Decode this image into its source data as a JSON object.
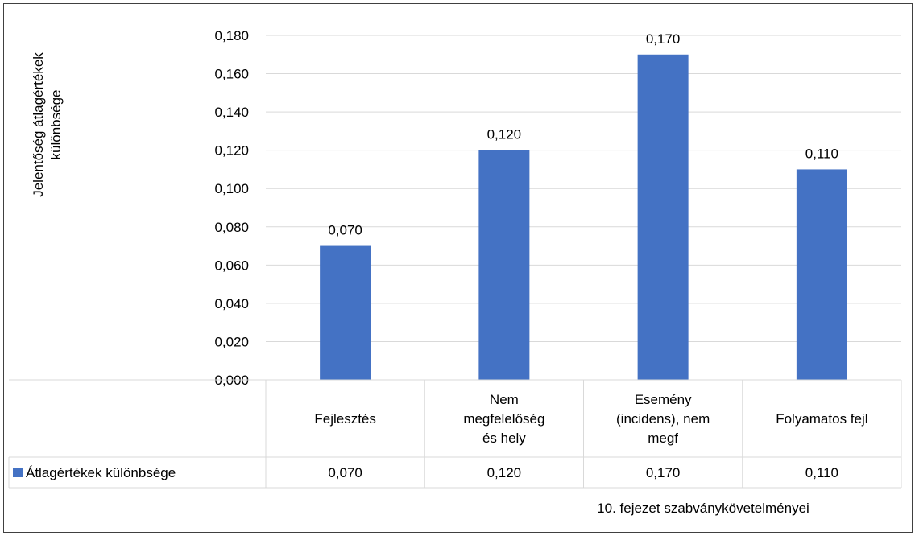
{
  "chart_data": {
    "type": "bar",
    "ylabel_lines": [
      "Jelentőség átlagértékek",
      "különbsége"
    ],
    "xlabel": "10. fejezet szabványkövetelményei",
    "categories": [
      [
        "Fejlesztés"
      ],
      [
        "Nem",
        "megfelelőség",
        "és hely"
      ],
      [
        "Esemény",
        "(incidens), nem",
        "megf"
      ],
      [
        "Folyamatos fejl"
      ]
    ],
    "series": [
      {
        "name": "Átlagértékek különbsége",
        "color": "#4472C4",
        "values": [
          0.07,
          0.12,
          0.17,
          0.11
        ],
        "value_labels": [
          "0,070",
          "0,120",
          "0,170",
          "0,110"
        ]
      }
    ],
    "y_ticks": [
      "0,000",
      "0,020",
      "0,040",
      "0,060",
      "0,080",
      "0,100",
      "0,120",
      "0,140",
      "0,160",
      "0,180"
    ],
    "ylim": [
      0,
      0.18
    ],
    "gridlines": true,
    "legend": "data-table"
  }
}
